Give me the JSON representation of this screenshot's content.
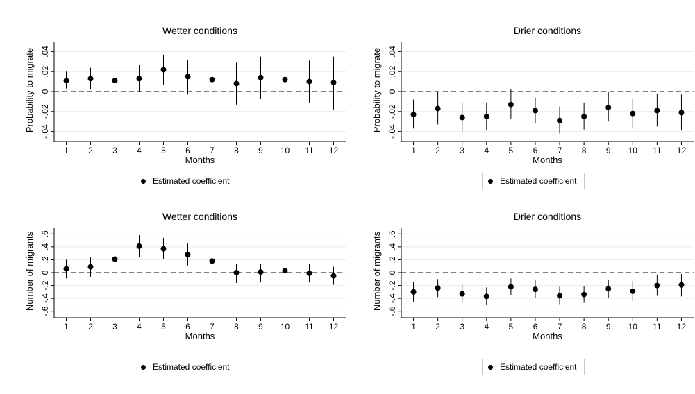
{
  "chart_data": [
    {
      "type": "scatter",
      "title": "Wetter conditions",
      "xlabel": "Months",
      "ylabel": "Probability to migrate",
      "categories": [
        "1",
        "2",
        "3",
        "4",
        "5",
        "6",
        "7",
        "8",
        "9",
        "10",
        "11",
        "12"
      ],
      "yticks": [
        -0.04,
        -0.02,
        0,
        0.02,
        0.04
      ],
      "ytick_labels": [
        "-.04",
        "-.02",
        "0",
        ".02",
        ".04"
      ],
      "ylim": [
        -0.05,
        0.05
      ],
      "series": [
        {
          "values": [
            0.011,
            0.013,
            0.011,
            0.013,
            0.022,
            0.015,
            0.012,
            0.008,
            0.014,
            0.012,
            0.01,
            0.009
          ],
          "ci_low": [
            0.003,
            0.002,
            0.0,
            0.0,
            0.007,
            -0.003,
            -0.006,
            -0.013,
            -0.007,
            -0.009,
            -0.011,
            -0.018
          ],
          "ci_high": [
            0.02,
            0.024,
            0.023,
            0.027,
            0.037,
            0.032,
            0.031,
            0.029,
            0.035,
            0.034,
            0.031,
            0.035
          ]
        }
      ],
      "reference_line": 0,
      "legend": "Estimated coefficient",
      "grid": true
    },
    {
      "type": "scatter",
      "title": "Drier conditions",
      "xlabel": "Months",
      "ylabel": "Probability to migrate",
      "categories": [
        "1",
        "2",
        "3",
        "4",
        "5",
        "6",
        "7",
        "8",
        "9",
        "10",
        "11",
        "12"
      ],
      "yticks": [
        -0.04,
        -0.02,
        0,
        0.02,
        0.04
      ],
      "ytick_labels": [
        "-.04",
        "-.02",
        "0",
        ".02",
        ".04"
      ],
      "ylim": [
        -0.05,
        0.05
      ],
      "series": [
        {
          "values": [
            -0.023,
            -0.017,
            -0.026,
            -0.025,
            -0.013,
            -0.019,
            -0.029,
            -0.025,
            -0.016,
            -0.022,
            -0.019,
            -0.021
          ],
          "ci_low": [
            -0.037,
            -0.033,
            -0.04,
            -0.039,
            -0.027,
            -0.032,
            -0.042,
            -0.038,
            -0.03,
            -0.037,
            -0.035,
            -0.039
          ],
          "ci_high": [
            -0.008,
            0.0,
            -0.011,
            -0.011,
            0.002,
            -0.006,
            -0.015,
            -0.011,
            0.0,
            -0.007,
            -0.002,
            -0.003
          ]
        }
      ],
      "reference_line": 0,
      "legend": "Estimated coefficient",
      "grid": true
    },
    {
      "type": "scatter",
      "title": "Wetter conditions",
      "xlabel": "Months",
      "ylabel": "Number of migrants",
      "categories": [
        "1",
        "2",
        "3",
        "4",
        "5",
        "6",
        "7",
        "8",
        "9",
        "10",
        "11",
        "12"
      ],
      "yticks": [
        -0.6,
        -0.4,
        -0.2,
        0,
        0.2,
        0.4,
        0.6
      ],
      "ytick_labels": [
        "-.6",
        "-.4",
        "-.2",
        "0",
        ".2",
        ".4",
        ".6"
      ],
      "ylim": [
        -0.7,
        0.7
      ],
      "series": [
        {
          "values": [
            0.06,
            0.09,
            0.21,
            0.41,
            0.37,
            0.28,
            0.18,
            0.0,
            0.01,
            0.03,
            -0.01,
            -0.05
          ],
          "ci_low": [
            -0.09,
            -0.07,
            0.05,
            0.24,
            0.21,
            0.11,
            0.02,
            -0.16,
            -0.14,
            -0.11,
            -0.15,
            -0.19
          ],
          "ci_high": [
            0.2,
            0.24,
            0.38,
            0.58,
            0.54,
            0.45,
            0.35,
            0.14,
            0.14,
            0.16,
            0.13,
            0.09
          ]
        }
      ],
      "reference_line": 0,
      "legend": "Estimated coefficient",
      "grid": true
    },
    {
      "type": "scatter",
      "title": "Drier conditions",
      "xlabel": "Months",
      "ylabel": "Number of migrants",
      "categories": [
        "1",
        "2",
        "3",
        "4",
        "5",
        "6",
        "7",
        "8",
        "9",
        "10",
        "11",
        "12"
      ],
      "yticks": [
        -0.6,
        -0.4,
        -0.2,
        0,
        0.2,
        0.4,
        0.6
      ],
      "ytick_labels": [
        "-.6",
        "-.4",
        "-.2",
        "0",
        ".2",
        ".4",
        ".6"
      ],
      "ylim": [
        -0.7,
        0.7
      ],
      "series": [
        {
          "values": [
            -0.3,
            -0.24,
            -0.33,
            -0.37,
            -0.22,
            -0.26,
            -0.36,
            -0.34,
            -0.25,
            -0.29,
            -0.2,
            -0.19
          ],
          "ci_low": [
            -0.45,
            -0.38,
            -0.47,
            -0.5,
            -0.35,
            -0.39,
            -0.49,
            -0.47,
            -0.39,
            -0.44,
            -0.36,
            -0.37
          ],
          "ci_high": [
            -0.15,
            -0.1,
            -0.19,
            -0.23,
            -0.09,
            -0.12,
            -0.22,
            -0.21,
            -0.11,
            -0.13,
            -0.03,
            -0.02
          ]
        }
      ],
      "reference_line": 0,
      "legend": "Estimated coefficient",
      "grid": true
    }
  ]
}
